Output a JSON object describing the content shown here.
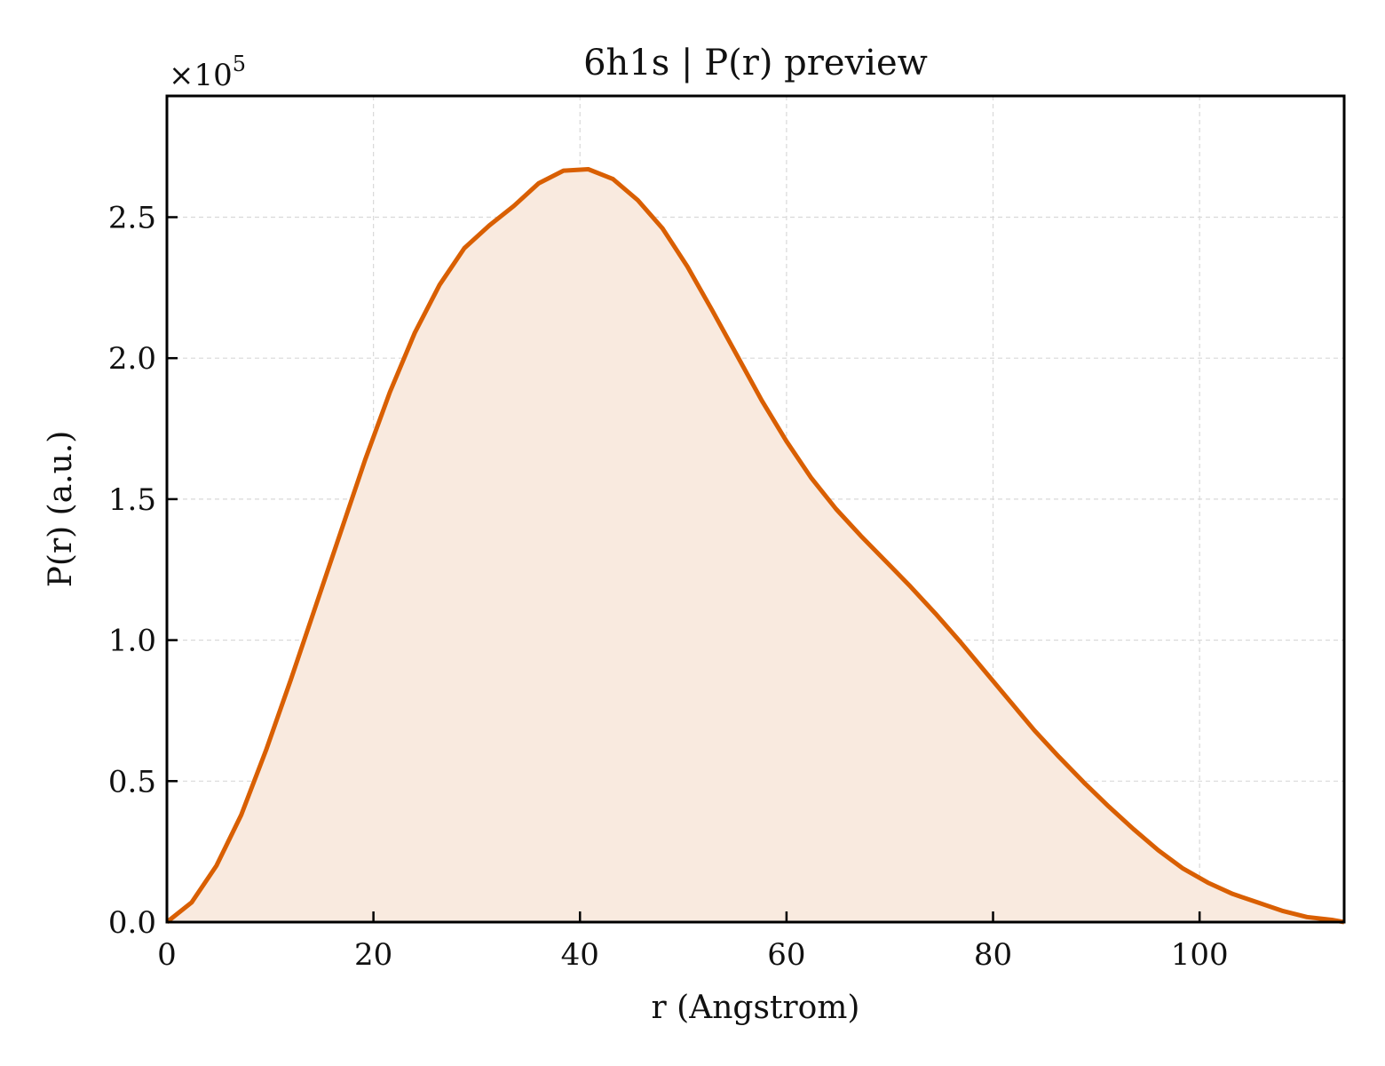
{
  "chart_data": {
    "type": "area",
    "title": "6h1s | P(r) preview",
    "xlabel": "r (Angstrom)",
    "ylabel": "P(r) (a.u.)",
    "y_scale_label": "×10",
    "y_scale_exponent": "5",
    "xlim": [
      0,
      114
    ],
    "ylim": [
      0,
      2.93
    ],
    "x_ticks": [
      0,
      20,
      40,
      60,
      80,
      100
    ],
    "y_ticks": [
      0.0,
      0.5,
      1.0,
      1.5,
      2.0,
      2.5
    ],
    "x_tick_labels": [
      "0",
      "20",
      "40",
      "60",
      "80",
      "100"
    ],
    "y_tick_labels": [
      "0.0",
      "0.5",
      "1.0",
      "1.5",
      "2.0",
      "2.5"
    ],
    "grid": true,
    "legend": "none",
    "colors": {
      "line": "#d95f02",
      "fill": "#f9eadf",
      "grid": "#d9d9d9",
      "axes": "#000000"
    },
    "series": [
      {
        "x": [
          0,
          2.4,
          4.8,
          7.2,
          9.6,
          12,
          14.4,
          16.8,
          19.2,
          21.6,
          24,
          26.4,
          28.8,
          31.2,
          33.6,
          36,
          38.4,
          40.8,
          43.2,
          45.6,
          48,
          50.4,
          52.8,
          55.2,
          57.6,
          60,
          62.4,
          64.8,
          67.2,
          69.6,
          72,
          74.4,
          76.8,
          79.2,
          81.6,
          84,
          86.4,
          88.8,
          91.2,
          93.6,
          96,
          98.4,
          100.8,
          103.2,
          105.6,
          108,
          110.4,
          112.8,
          114
        ],
        "y": [
          0.0,
          0.07,
          0.2,
          0.38,
          0.61,
          0.86,
          1.12,
          1.38,
          1.64,
          1.88,
          2.09,
          2.26,
          2.39,
          2.47,
          2.54,
          2.62,
          2.665,
          2.67,
          2.635,
          2.56,
          2.46,
          2.325,
          2.17,
          2.01,
          1.85,
          1.705,
          1.575,
          1.465,
          1.37,
          1.28,
          1.19,
          1.095,
          0.995,
          0.89,
          0.785,
          0.68,
          0.585,
          0.495,
          0.41,
          0.33,
          0.255,
          0.19,
          0.14,
          0.1,
          0.07,
          0.04,
          0.018,
          0.008,
          0.0
        ]
      }
    ]
  }
}
